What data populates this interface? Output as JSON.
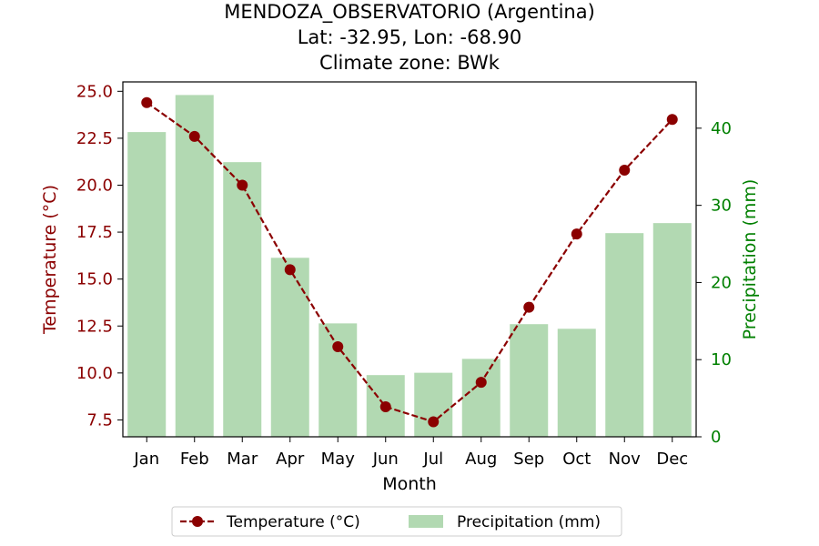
{
  "chart_data": {
    "type": "bar+line",
    "title": [
      "MENDOZA_OBSERVATORIO (Argentina)",
      "Lat: -32.95, Lon: -68.90",
      "Climate zone: BWk"
    ],
    "xlabel": "Month",
    "ylabel_left": "Temperature (°C)",
    "ylabel_right": "Precipitation (mm)",
    "categories": [
      "Jan",
      "Feb",
      "Mar",
      "Apr",
      "May",
      "Jun",
      "Jul",
      "Aug",
      "Sep",
      "Oct",
      "Nov",
      "Dec"
    ],
    "temperature": {
      "name": "Temperature (°C)",
      "color": "#8b0000",
      "values": [
        24.4,
        22.6,
        20.0,
        15.5,
        11.4,
        8.2,
        7.4,
        9.5,
        13.5,
        17.4,
        20.8,
        23.5
      ]
    },
    "precipitation": {
      "name": "Precipitation (mm)",
      "color": "#b2d9b2",
      "values": [
        39.5,
        44.3,
        35.6,
        23.2,
        14.7,
        8.0,
        8.3,
        10.1,
        14.6,
        14.0,
        26.4,
        27.7
      ]
    },
    "ylim_left": [
      6.6,
      25.5
    ],
    "yticks_left": [
      "7.5",
      "10.0",
      "12.5",
      "15.0",
      "17.5",
      "20.0",
      "22.5",
      "25.0"
    ],
    "ylim_right": [
      0,
      46
    ],
    "yticks_right": [
      "0",
      "10",
      "20",
      "30",
      "40"
    ],
    "left_axis_color": "#8b0000",
    "right_axis_color": "#008000",
    "legend_position": "bottom-center"
  }
}
